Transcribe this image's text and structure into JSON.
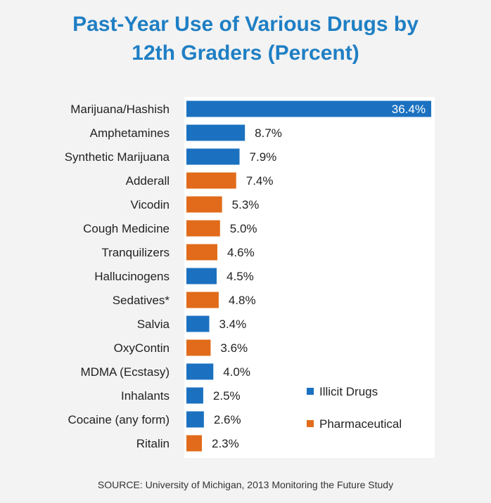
{
  "title_line1": "Past-Year Use of Various Drugs by",
  "title_line2": "12th Graders (Percent)",
  "source": "SOURCE: University of Michigan, 2013 Monitoring the Future Study",
  "colors": {
    "illicit": "#1b71c0",
    "pharmaceutical": "#e16b1a",
    "title": "#1f7fc4"
  },
  "chart_data": {
    "type": "bar",
    "orientation": "horizontal",
    "title": "Past-Year Use of Various Drugs by 12th Graders (Percent)",
    "categories": [
      "Marijuana/Hashish",
      "Amphetamines",
      "Synthetic Marijuana",
      "Adderall",
      "Vicodin",
      "Cough Medicine",
      "Tranquilizers",
      "Hallucinogens",
      "Sedatives*",
      "Salvia",
      "OxyContin",
      "MDMA (Ecstasy)",
      "Inhalants",
      "Cocaine (any form)",
      "Ritalin"
    ],
    "values": [
      36.4,
      8.7,
      7.9,
      7.4,
      5.3,
      5.0,
      4.6,
      4.5,
      4.8,
      3.4,
      3.6,
      4.0,
      2.5,
      2.6,
      2.3
    ],
    "value_labels": [
      "36.4%",
      "8.7%",
      "7.9%",
      "7.4%",
      "5.3%",
      "5.0%",
      "4.6%",
      "4.5%",
      "4.8%",
      "3.4%",
      "3.6%",
      "4.0%",
      "2.5%",
      "2.6%",
      "2.3%"
    ],
    "group": [
      "Illicit Drugs",
      "Illicit Drugs",
      "Illicit Drugs",
      "Pharmaceutical",
      "Pharmaceutical",
      "Pharmaceutical",
      "Pharmaceutical",
      "Illicit Drugs",
      "Pharmaceutical",
      "Illicit Drugs",
      "Pharmaceutical",
      "Illicit Drugs",
      "Illicit Drugs",
      "Illicit Drugs",
      "Pharmaceutical"
    ],
    "legend": [
      "Illicit Drugs",
      "Pharmaceutical"
    ],
    "legend_position": "bottom-right",
    "xlim": [
      0,
      36.4
    ],
    "grid": false
  }
}
